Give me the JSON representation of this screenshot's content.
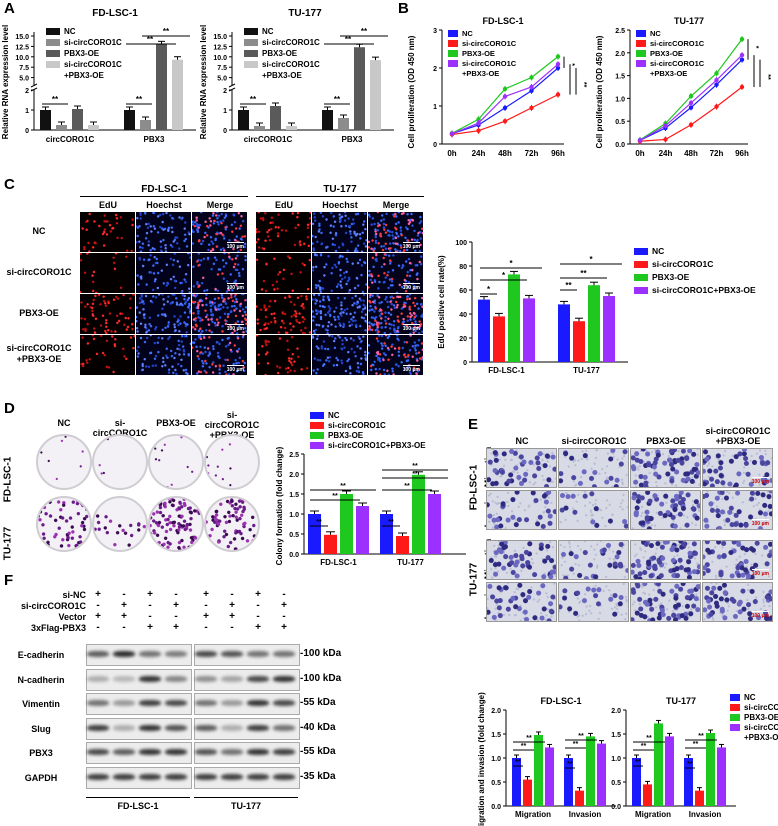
{
  "colors": {
    "nc": "#1a1aff",
    "si": "#ff1a1a",
    "pbx": "#1ec81e",
    "combo": "#9b30ff",
    "grayNC": "#111111",
    "graySi": "#8c8c8c",
    "grayPbx": "#5a5a5a",
    "grayCombo": "#c8c8c8"
  },
  "panels": {
    "a": "A",
    "b": "B",
    "c": "C",
    "d": "D",
    "e": "E",
    "f": "F"
  },
  "legends": {
    "four": [
      "NC",
      "si-circCORO1C",
      "PBX3-OE",
      "si-circCORO1C+PBX3-OE"
    ],
    "four_wrapped": [
      "NC",
      "si-circCORO1C",
      "PBX3-OE",
      "si-circCORO1C",
      "+PBX3-OE"
    ]
  },
  "panelA": {
    "chart_data": [
      {
        "type": "bar",
        "title": "FD-LSC-1",
        "ylabel": "Relative RNA expression level",
        "categories": [
          "circCORO1C",
          "PBX3"
        ],
        "series": [
          {
            "name": "NC",
            "values": [
              1.0,
              1.0
            ]
          },
          {
            "name": "si-circCORO1C",
            "values": [
              0.25,
              0.5
            ]
          },
          {
            "name": "PBX3-OE",
            "values": [
              1.05,
              13.0
            ]
          },
          {
            "name": "si-circCORO1C+PBX3-OE",
            "values": [
              0.25,
              9.3
            ]
          }
        ],
        "ylim": [
          0,
          15
        ],
        "yticks": [
          "0",
          "1",
          "2",
          "5.0",
          "7.5",
          "10.0",
          "12.5",
          "15.0"
        ],
        "sig": "**"
      },
      {
        "type": "bar",
        "title": "TU-177",
        "ylabel": "Relative RNA expression level",
        "categories": [
          "circCORO1C",
          "PBX3"
        ],
        "series": [
          {
            "name": "NC",
            "values": [
              1.0,
              1.0
            ]
          },
          {
            "name": "si-circCORO1C",
            "values": [
              0.2,
              0.6
            ]
          },
          {
            "name": "PBX3-OE",
            "values": [
              1.2,
              12.3
            ]
          },
          {
            "name": "si-circCORO1C+PBX3-OE",
            "values": [
              0.2,
              9.2
            ]
          }
        ],
        "ylim": [
          0,
          15
        ],
        "yticks": [
          "0",
          "1",
          "2",
          "5.0",
          "7.5",
          "10.0",
          "12.5",
          "15.0"
        ],
        "sig": "**"
      }
    ]
  },
  "panelB": {
    "chart_data": [
      {
        "type": "line",
        "title": "FD-LSC-1",
        "ylabel": "Cell proliferation (OD 450 nm)",
        "x": [
          "0h",
          "24h",
          "48h",
          "72h",
          "96h"
        ],
        "ylim": [
          0,
          3
        ],
        "yticks": [
          "0",
          "1",
          "2",
          "3"
        ],
        "series": [
          {
            "name": "NC",
            "values": [
              0.27,
              0.5,
              0.95,
              1.4,
              2.0
            ]
          },
          {
            "name": "si-circCORO1C",
            "values": [
              0.25,
              0.35,
              0.6,
              0.95,
              1.3
            ]
          },
          {
            "name": "PBX3-OE",
            "values": [
              0.28,
              0.65,
              1.45,
              1.75,
              2.3
            ]
          },
          {
            "name": "si-circCORO1C+PBX3-OE",
            "values": [
              0.27,
              0.55,
              1.25,
              1.5,
              2.1
            ]
          }
        ],
        "sig": [
          "*",
          "**",
          "**"
        ]
      },
      {
        "type": "line",
        "title": "TU-177",
        "ylabel": "Cell proliferation (OD 450 nm)",
        "x": [
          "0h",
          "24h",
          "48h",
          "72h",
          "96h"
        ],
        "ylim": [
          0,
          2.5
        ],
        "yticks": [
          "0.0",
          "0.5",
          "1.0",
          "1.5",
          "2.0",
          "2.5"
        ],
        "series": [
          {
            "name": "NC",
            "values": [
              0.08,
              0.35,
              0.8,
              1.3,
              1.85
            ]
          },
          {
            "name": "si-circCORO1C",
            "values": [
              0.06,
              0.1,
              0.42,
              0.82,
              1.25
            ]
          },
          {
            "name": "PBX3-OE",
            "values": [
              0.09,
              0.45,
              1.05,
              1.55,
              2.3
            ]
          },
          {
            "name": "si-circCORO1C+PBX3-OE",
            "values": [
              0.08,
              0.4,
              0.9,
              1.4,
              1.95
            ]
          }
        ],
        "sig": [
          "*",
          "**",
          "**"
        ]
      }
    ]
  },
  "panelC": {
    "groups": [
      "FD-LSC-1",
      "TU-177"
    ],
    "cols": [
      "EdU",
      "Hoechst",
      "Merge"
    ],
    "rows": [
      "NC",
      "si-circCORO1C",
      "PBX3-OE",
      "si-circCORO1C",
      "+PBX3-OE"
    ],
    "scalebar": "100 μm",
    "chart_data": {
      "type": "bar",
      "ylabel": "EdU positive cell rate(%)",
      "categories": [
        "FD-LSC-1",
        "TU-177"
      ],
      "ylim": [
        0,
        100
      ],
      "yticks": [
        "0",
        "20",
        "40",
        "60",
        "80",
        "100"
      ],
      "series": [
        {
          "name": "NC",
          "values": [
            52,
            48
          ]
        },
        {
          "name": "si-circCORO1C",
          "values": [
            38,
            34
          ]
        },
        {
          "name": "PBX3-OE",
          "values": [
            73,
            64
          ]
        },
        {
          "name": "si-circCORO1C+PBX3-OE",
          "values": [
            53,
            55
          ]
        }
      ],
      "sig": [
        "*",
        "*",
        "*",
        "**",
        "**",
        "*"
      ]
    }
  },
  "panelD": {
    "cols": [
      "NC",
      "si-circCORO1C",
      "PBX3-OE",
      "si-circCORO1C",
      "+PBX3-OE"
    ],
    "rows": [
      "FD-LSC-1",
      "TU-177"
    ],
    "chart_data": {
      "type": "bar",
      "ylabel": "Colony formation (fold change)",
      "categories": [
        "FD-LSC-1",
        "TU-177"
      ],
      "ylim": [
        0,
        2.5
      ],
      "yticks": [
        "0.0",
        "0.5",
        "1.0",
        "1.5",
        "2.0",
        "2.5"
      ],
      "series": [
        {
          "name": "NC",
          "values": [
            1.0,
            1.0
          ]
        },
        {
          "name": "si-circCORO1C",
          "values": [
            0.48,
            0.45
          ]
        },
        {
          "name": "PBX3-OE",
          "values": [
            1.5,
            1.98
          ]
        },
        {
          "name": "si-circCORO1C+PBX3-OE",
          "values": [
            1.2,
            1.5
          ]
        }
      ],
      "sig": "**"
    }
  },
  "panelE": {
    "cols": [
      "NC",
      "si-circCORO1C",
      "PBX3-OE",
      "si-circCORO1C",
      "+PBX3-OE"
    ],
    "groups": [
      "FD-LSC-1",
      "TU-177"
    ],
    "rows": [
      "Migration",
      "Invasion"
    ],
    "scalebar": "100 μm",
    "chart_data": [
      {
        "type": "bar",
        "title": "FD-LSC-1",
        "ylabel": "Migration and invasion (fold change)",
        "categories": [
          "Migration",
          "Invasion"
        ],
        "ylim": [
          0,
          2.0
        ],
        "yticks": [
          "0.0",
          "0.5",
          "1.0",
          "1.5",
          "2.0"
        ],
        "series": [
          {
            "name": "NC",
            "values": [
              1.0,
              1.0
            ]
          },
          {
            "name": "si-circCORO1C",
            "values": [
              0.55,
              0.32
            ]
          },
          {
            "name": "PBX3-OE",
            "values": [
              1.48,
              1.45
            ]
          },
          {
            "name": "si-circCORO1C+PBX3-OE",
            "values": [
              1.22,
              1.3
            ]
          }
        ],
        "sig": "**"
      },
      {
        "type": "bar",
        "title": "TU-177",
        "ylabel": "",
        "categories": [
          "Migration",
          "Invasion"
        ],
        "ylim": [
          0,
          2.0
        ],
        "yticks": [
          "0.0",
          "0.5",
          "1.0",
          "1.5",
          "2.0"
        ],
        "series": [
          {
            "name": "NC",
            "values": [
              1.0,
              1.0
            ]
          },
          {
            "name": "si-circCORO1C",
            "values": [
              0.45,
              0.32
            ]
          },
          {
            "name": "PBX3-OE",
            "values": [
              1.72,
              1.52
            ]
          },
          {
            "name": "si-circCORO1C+PBX3-OE",
            "values": [
              1.45,
              1.22
            ]
          }
        ],
        "sig": "**"
      }
    ]
  },
  "panelF": {
    "conditions": [
      {
        "label": "si-NC",
        "signs": [
          "+",
          "-",
          "+",
          "-",
          "+",
          "-",
          "+",
          "-"
        ]
      },
      {
        "label": "si-circCORO1C",
        "signs": [
          "-",
          "+",
          "-",
          "+",
          "-",
          "+",
          "-",
          "+"
        ]
      },
      {
        "label": "Vector",
        "signs": [
          "+",
          "+",
          "-",
          "-",
          "+",
          "+",
          "-",
          "-"
        ]
      },
      {
        "label": "3xFlag-PBX3",
        "signs": [
          "-",
          "-",
          "+",
          "+",
          "-",
          "-",
          "+",
          "+"
        ]
      }
    ],
    "blots": [
      {
        "name": "E-cadherin",
        "kda": "-100 kDa"
      },
      {
        "name": "N-cadherin",
        "kda": "-100 kDa"
      },
      {
        "name": "Vimentin",
        "kda": "-55 kDa"
      },
      {
        "name": "Slug",
        "kda": "-40 kDa"
      },
      {
        "name": "PBX3",
        "kda": "-55 kDa"
      },
      {
        "name": "GAPDH",
        "kda": "-35 kDa"
      }
    ],
    "groups": [
      "FD-LSC-1",
      "TU-177"
    ]
  }
}
